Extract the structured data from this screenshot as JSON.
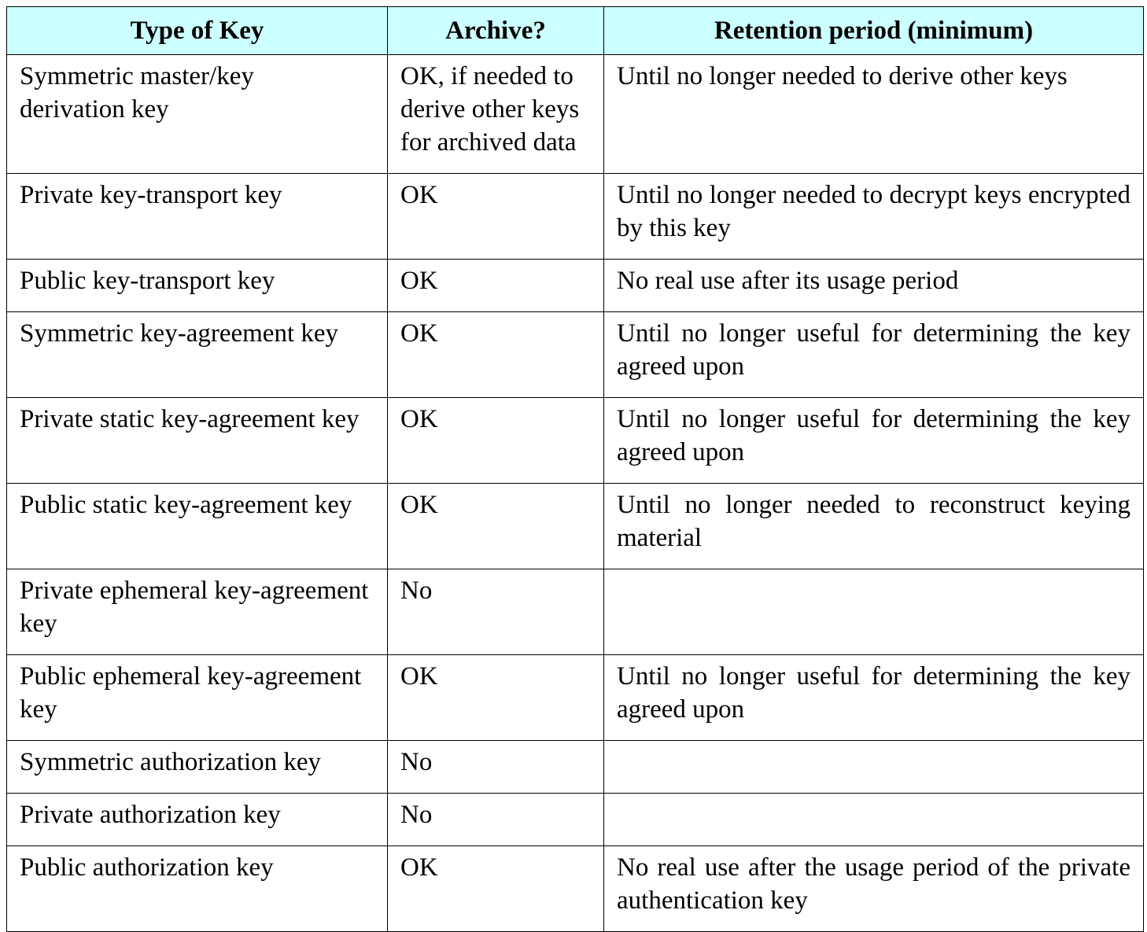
{
  "table": {
    "headers": [
      "Type of Key",
      "Archive?",
      "Retention period (minimum)"
    ],
    "header_background": "#ccffff",
    "rows": [
      {
        "type": "Symmetric master/key derivation key",
        "archive": "OK, if needed to derive other keys for archived data",
        "retention": "Until no longer needed to derive other keys"
      },
      {
        "type": "Private key-transport key",
        "archive": "OK",
        "retention": "Until no longer needed to decrypt keys encrypted by this key"
      },
      {
        "type": "Public key-transport key",
        "archive": "OK",
        "retention": "No real use after its usage period"
      },
      {
        "type": "Symmetric key-agreement key",
        "archive": "OK",
        "retention": "Until no longer useful for determining the key agreed upon"
      },
      {
        "type": "Private static key-agreement key",
        "archive": "OK",
        "retention": "Until no longer useful for determining the key agreed upon"
      },
      {
        "type": "Public static key-agreement key",
        "archive": "OK",
        "retention": "Until no longer needed to reconstruct keying material"
      },
      {
        "type": "Private ephemeral key-agreement key",
        "archive": "No",
        "retention": ""
      },
      {
        "type": "Public ephemeral key-agreement key",
        "archive": "OK",
        "retention": "Until no longer useful for determining the key agreed upon"
      },
      {
        "type": "Symmetric authorization key",
        "archive": "No",
        "retention": ""
      },
      {
        "type": "Private authorization key",
        "archive": "No",
        "retention": ""
      },
      {
        "type": "Public authorization key",
        "archive": "OK",
        "retention": "No real use after the usage period of the private authentication key"
      }
    ]
  }
}
